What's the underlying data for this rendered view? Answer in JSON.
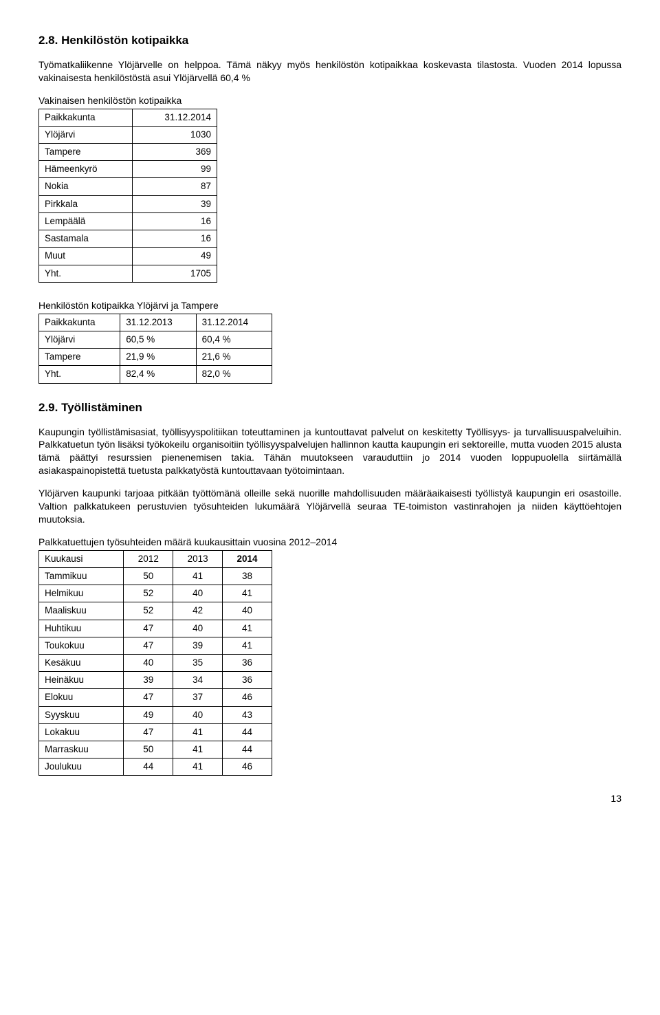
{
  "section28": {
    "heading": "2.8. Henkilöstön kotipaikka",
    "para1": "Työmatkaliikenne Ylöjärvelle on helppoa. Tämä näkyy myös henkilöstön kotipaikkaa koskevasta tilastosta. Vuoden 2014 lopussa vakinaisesta henkilöstöstä asui Ylöjärvellä 60,4 %",
    "table1_caption": "Vakinaisen henkilöstön kotipaikka",
    "table1": {
      "rows": [
        [
          "Paikkakunta",
          "31.12.2014"
        ],
        [
          "Ylöjärvi",
          "1030"
        ],
        [
          "Tampere",
          "369"
        ],
        [
          "Hämeenkyrö",
          "99"
        ],
        [
          "Nokia",
          "87"
        ],
        [
          "Pirkkala",
          "39"
        ],
        [
          "Lempäälä",
          "16"
        ],
        [
          "Sastamala",
          "16"
        ],
        [
          "Muut",
          "49"
        ],
        [
          "Yht.",
          "1705"
        ]
      ]
    },
    "table2_caption": "Henkilöstön kotipaikka Ylöjärvi ja Tampere",
    "table2": {
      "rows": [
        [
          "Paikkakunta",
          "31.12.2013",
          "31.12.2014"
        ],
        [
          "Ylöjärvi",
          "60,5 %",
          "60,4 %"
        ],
        [
          "Tampere",
          "21,9 %",
          "21,6 %"
        ],
        [
          "Yht.",
          "82,4 %",
          "82,0 %"
        ]
      ]
    }
  },
  "section29": {
    "heading": "2.9. Työllistäminen",
    "para1": "Kaupungin työllistämisasiat, työllisyyspolitiikan toteuttaminen ja kuntouttavat palvelut on keskitetty Työllisyys- ja turvallisuuspalveluihin. Palkkatuetun työn lisäksi työkokeilu organisoitiin työllisyyspalvelujen hallinnon kautta kaupungin eri sektoreille, mutta vuoden 2015 alusta tämä päättyi resurssien pienenemisen takia. Tähän muutokseen varauduttiin jo 2014 vuoden loppupuolella siirtämällä asiakaspainopistettä tuetusta palkkatyöstä kuntouttavaan työtoimintaan.",
    "para2": "Ylöjärven kaupunki tarjoaa pitkään työttömänä olleille sekä nuorille mahdollisuuden määräaikaisesti työllistyä kaupungin eri osastoille. Valtion palkkatukeen perustuvien työsuhteiden lukumäärä Ylöjärvellä seuraa TE-toimiston vastinrahojen ja niiden käyttöehtojen muutoksia.",
    "table3_caption": "Palkkatuettujen työsuhteiden määrä kuukausittain vuosina 2012–2014",
    "table3": {
      "header": [
        "Kuukausi",
        "2012",
        "2013",
        "2014"
      ],
      "rows": [
        [
          "Tammikuu",
          "50",
          "41",
          "38"
        ],
        [
          "Helmikuu",
          "52",
          "40",
          "41"
        ],
        [
          "Maaliskuu",
          "52",
          "42",
          "40"
        ],
        [
          "Huhtikuu",
          "47",
          "40",
          "41"
        ],
        [
          "Toukokuu",
          "47",
          "39",
          "41"
        ],
        [
          "Kesäkuu",
          "40",
          "35",
          "36"
        ],
        [
          "Heinäkuu",
          "39",
          "34",
          "36"
        ],
        [
          "Elokuu",
          "47",
          "37",
          "46"
        ],
        [
          "Syyskuu",
          "49",
          "40",
          "43"
        ],
        [
          "Lokakuu",
          "47",
          "41",
          "44"
        ],
        [
          "Marraskuu",
          "50",
          "41",
          "44"
        ],
        [
          "Joulukuu",
          "44",
          "41",
          "46"
        ]
      ]
    }
  },
  "page_number": "13"
}
